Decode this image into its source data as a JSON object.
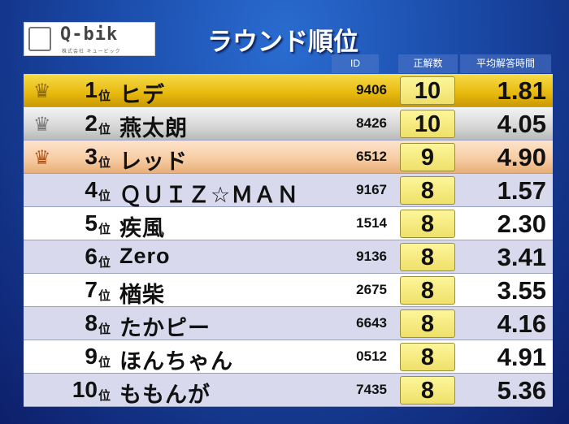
{
  "logo": {
    "text": "Q-bik",
    "sub": "株式会社 キュービック"
  },
  "title": "ラウンド順位",
  "headers": {
    "id": "ID",
    "score": "正解数",
    "time": "平均解答時間"
  },
  "rank_suffix": "位",
  "colors": {
    "gold": "#e7b90d",
    "silver": "#d6d6d6",
    "bronze": "#f6caa0",
    "lavender": "#d8d9ec",
    "score_box": "#f5ea7a"
  },
  "rows": [
    {
      "rank": "1",
      "name": "ヒデ",
      "id": "9406",
      "score": "10",
      "time": "1.81",
      "crown": "gold-crown"
    },
    {
      "rank": "2",
      "name": "燕太朗",
      "id": "8426",
      "score": "10",
      "time": "4.05",
      "crown": "silver-crown"
    },
    {
      "rank": "3",
      "name": "レッド",
      "id": "6512",
      "score": "9",
      "time": "4.90",
      "crown": "bronze-crown"
    },
    {
      "rank": "4",
      "name": "ＱＵＩＺ☆ＭＡＮ",
      "id": "9167",
      "score": "8",
      "time": "1.57"
    },
    {
      "rank": "5",
      "name": "疾風",
      "id": "1514",
      "score": "8",
      "time": "2.30"
    },
    {
      "rank": "6",
      "name": "Zero",
      "id": "9136",
      "score": "8",
      "time": "3.41"
    },
    {
      "rank": "7",
      "name": "楢柴",
      "id": "2675",
      "score": "8",
      "time": "3.55"
    },
    {
      "rank": "8",
      "name": "たかピー",
      "id": "6643",
      "score": "8",
      "time": "4.16"
    },
    {
      "rank": "9",
      "name": "ほんちゃん",
      "id": "0512",
      "score": "8",
      "time": "4.91"
    },
    {
      "rank": "10",
      "name": "ももんが",
      "id": "7435",
      "score": "8",
      "time": "5.36"
    }
  ]
}
